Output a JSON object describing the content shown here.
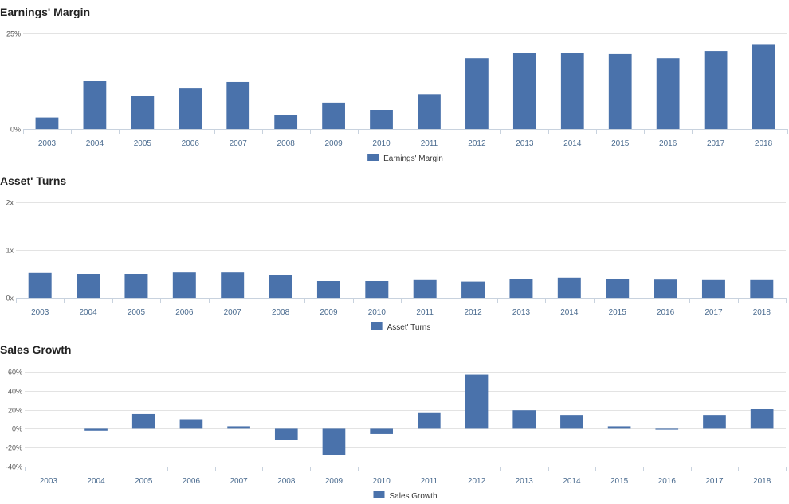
{
  "colors": {
    "bar": "#4a72ab",
    "grid": "#e3e3e3",
    "axis": "#c8d2de"
  },
  "chart_data": [
    {
      "type": "bar",
      "title": "Earnings' Margin",
      "categories": [
        "2003",
        "2004",
        "2005",
        "2006",
        "2007",
        "2008",
        "2009",
        "2010",
        "2011",
        "2012",
        "2013",
        "2014",
        "2015",
        "2016",
        "2017",
        "2018"
      ],
      "series": [
        {
          "name": "Earnings' Margin",
          "values": [
            3,
            12.5,
            8.7,
            10.6,
            12.3,
            3.7,
            6.9,
            5,
            9.1,
            18.5,
            19.8,
            20,
            19.6,
            18.5,
            20.4,
            22.2
          ]
        }
      ],
      "ylim": [
        0,
        25
      ],
      "yticks": [
        0,
        25
      ],
      "ytick_labels": [
        "0%",
        "25%"
      ],
      "legend": "bottom-center",
      "grid": true
    },
    {
      "type": "bar",
      "title": "Asset' Turns",
      "categories": [
        "2003",
        "2004",
        "2005",
        "2006",
        "2007",
        "2008",
        "2009",
        "2010",
        "2011",
        "2012",
        "2013",
        "2014",
        "2015",
        "2016",
        "2017",
        "2018"
      ],
      "series": [
        {
          "name": "Asset' Turns",
          "values": [
            0.52,
            0.5,
            0.5,
            0.53,
            0.53,
            0.47,
            0.35,
            0.35,
            0.37,
            0.34,
            0.39,
            0.42,
            0.4,
            0.38,
            0.37,
            0.37
          ]
        }
      ],
      "ylim": [
        0,
        2
      ],
      "yticks": [
        0,
        1,
        2
      ],
      "ytick_labels": [
        "0x",
        "1x",
        "2x"
      ],
      "legend": "bottom-center",
      "grid": true
    },
    {
      "type": "bar",
      "title": "Sales Growth",
      "categories": [
        "2003",
        "2004",
        "2005",
        "2006",
        "2007",
        "2008",
        "2009",
        "2010",
        "2011",
        "2012",
        "2013",
        "2014",
        "2015",
        "2016",
        "2017",
        "2018"
      ],
      "series": [
        {
          "name": "Sales Growth",
          "values": [
            0,
            -2,
            15.5,
            10,
            2.5,
            -12,
            -28,
            -5.5,
            16.5,
            57,
            19.5,
            14.5,
            2.5,
            -1,
            14.5,
            20.5
          ]
        }
      ],
      "ylim": [
        -40,
        60
      ],
      "yticks": [
        -40,
        -20,
        0,
        20,
        40,
        60
      ],
      "ytick_labels": [
        "-40%",
        "-20%",
        "0%",
        "20%",
        "40%",
        "60%"
      ],
      "legend": "bottom-center",
      "grid": true
    }
  ]
}
